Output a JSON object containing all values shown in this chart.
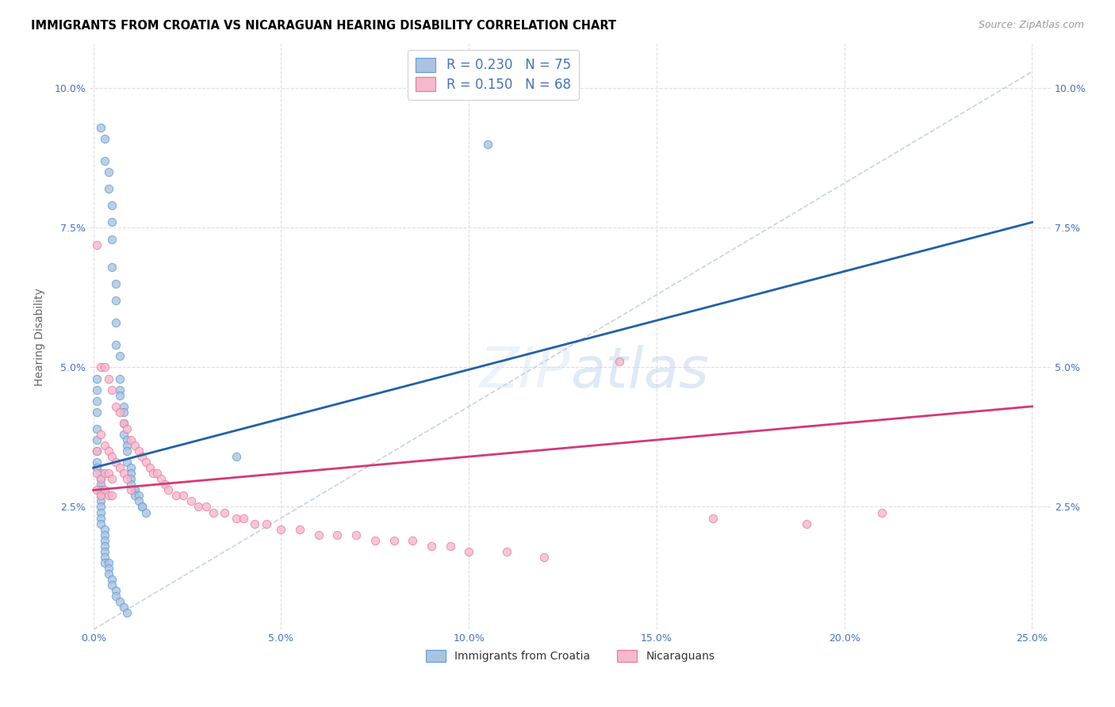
{
  "title": "IMMIGRANTS FROM CROATIA VS NICARAGUAN HEARING DISABILITY CORRELATION CHART",
  "source": "Source: ZipAtlas.com",
  "ylabel": "Hearing Disability",
  "xlim": [
    -0.001,
    0.255
  ],
  "ylim": [
    0.003,
    0.108
  ],
  "xticks": [
    0.0,
    0.05,
    0.1,
    0.15,
    0.2,
    0.25
  ],
  "yticks": [
    0.025,
    0.05,
    0.075,
    0.1
  ],
  "xticklabels": [
    "0.0%",
    "5.0%",
    "10.0%",
    "15.0%",
    "20.0%",
    "25.0%"
  ],
  "yticklabels": [
    "2.5%",
    "5.0%",
    "7.5%",
    "10.0%"
  ],
  "legend1_label": "R = 0.230   N = 75",
  "legend2_label": "R = 0.150   N = 68",
  "legend_bottom1": "Immigrants from Croatia",
  "legend_bottom2": "Nicaraguans",
  "blue_fill": "#aac4e0",
  "blue_edge": "#5b9bd5",
  "pink_fill": "#f5b8cc",
  "pink_edge": "#e87898",
  "trend_blue": "#2060a8",
  "trend_pink": "#d43878",
  "diagonal_color": "#c0cfe0",
  "background_color": "#ffffff",
  "grid_color": "#e0e0e0",
  "tick_color": "#4472c4",
  "title_fontsize": 10.5,
  "axis_label_fontsize": 10,
  "tick_fontsize": 9,
  "legend_fontsize": 12,
  "source_fontsize": 9,
  "blue_trend": [
    0.0,
    0.25,
    0.032,
    0.076
  ],
  "pink_trend": [
    0.0,
    0.25,
    0.028,
    0.043
  ],
  "diag": [
    0.0,
    0.25,
    0.003,
    0.103
  ],
  "blue_x": [
    0.002,
    0.003,
    0.003,
    0.004,
    0.004,
    0.005,
    0.005,
    0.005,
    0.005,
    0.006,
    0.006,
    0.006,
    0.006,
    0.007,
    0.007,
    0.007,
    0.007,
    0.008,
    0.008,
    0.008,
    0.008,
    0.009,
    0.009,
    0.009,
    0.009,
    0.01,
    0.01,
    0.01,
    0.01,
    0.011,
    0.011,
    0.011,
    0.012,
    0.012,
    0.013,
    0.013,
    0.014,
    0.001,
    0.001,
    0.001,
    0.001,
    0.001,
    0.001,
    0.001,
    0.001,
    0.001,
    0.002,
    0.002,
    0.002,
    0.002,
    0.002,
    0.002,
    0.002,
    0.002,
    0.002,
    0.002,
    0.003,
    0.003,
    0.003,
    0.003,
    0.003,
    0.003,
    0.003,
    0.004,
    0.004,
    0.004,
    0.005,
    0.005,
    0.006,
    0.006,
    0.007,
    0.008,
    0.009,
    0.105,
    0.038
  ],
  "blue_y": [
    0.093,
    0.091,
    0.087,
    0.085,
    0.082,
    0.079,
    0.076,
    0.073,
    0.068,
    0.065,
    0.062,
    0.058,
    0.054,
    0.052,
    0.048,
    0.046,
    0.045,
    0.043,
    0.042,
    0.04,
    0.038,
    0.037,
    0.036,
    0.035,
    0.033,
    0.032,
    0.031,
    0.03,
    0.029,
    0.028,
    0.028,
    0.027,
    0.027,
    0.026,
    0.025,
    0.025,
    0.024,
    0.048,
    0.046,
    0.044,
    0.042,
    0.039,
    0.037,
    0.035,
    0.033,
    0.032,
    0.031,
    0.03,
    0.029,
    0.028,
    0.027,
    0.026,
    0.025,
    0.024,
    0.023,
    0.022,
    0.021,
    0.02,
    0.019,
    0.018,
    0.017,
    0.016,
    0.015,
    0.015,
    0.014,
    0.013,
    0.012,
    0.011,
    0.01,
    0.009,
    0.008,
    0.007,
    0.006,
    0.09,
    0.034
  ],
  "pink_x": [
    0.001,
    0.001,
    0.001,
    0.001,
    0.002,
    0.002,
    0.002,
    0.002,
    0.003,
    0.003,
    0.003,
    0.003,
    0.004,
    0.004,
    0.004,
    0.004,
    0.005,
    0.005,
    0.005,
    0.005,
    0.006,
    0.006,
    0.007,
    0.007,
    0.008,
    0.008,
    0.009,
    0.009,
    0.01,
    0.01,
    0.011,
    0.012,
    0.013,
    0.014,
    0.015,
    0.016,
    0.017,
    0.018,
    0.019,
    0.02,
    0.022,
    0.024,
    0.026,
    0.028,
    0.03,
    0.032,
    0.035,
    0.038,
    0.04,
    0.043,
    0.046,
    0.05,
    0.055,
    0.06,
    0.065,
    0.07,
    0.075,
    0.08,
    0.085,
    0.09,
    0.095,
    0.1,
    0.11,
    0.12,
    0.14,
    0.165,
    0.19,
    0.21
  ],
  "pink_y": [
    0.072,
    0.035,
    0.031,
    0.028,
    0.05,
    0.038,
    0.03,
    0.027,
    0.05,
    0.036,
    0.031,
    0.028,
    0.048,
    0.035,
    0.031,
    0.027,
    0.046,
    0.034,
    0.03,
    0.027,
    0.043,
    0.033,
    0.042,
    0.032,
    0.04,
    0.031,
    0.039,
    0.03,
    0.037,
    0.028,
    0.036,
    0.035,
    0.034,
    0.033,
    0.032,
    0.031,
    0.031,
    0.03,
    0.029,
    0.028,
    0.027,
    0.027,
    0.026,
    0.025,
    0.025,
    0.024,
    0.024,
    0.023,
    0.023,
    0.022,
    0.022,
    0.021,
    0.021,
    0.02,
    0.02,
    0.02,
    0.019,
    0.019,
    0.019,
    0.018,
    0.018,
    0.017,
    0.017,
    0.016,
    0.051,
    0.023,
    0.022,
    0.024
  ]
}
